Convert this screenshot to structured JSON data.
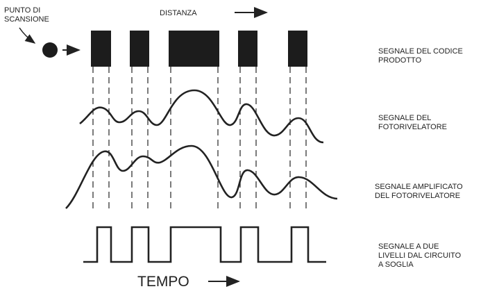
{
  "scan_point": [
    "PUNTO DI",
    "SCANSIONE"
  ],
  "distance": "DISTANZA",
  "signals": [
    {
      "lines": [
        "SEGNALE DEL CODICE",
        "PRODOTTO"
      ]
    },
    {
      "lines": [
        "SEGNALE DEL",
        "FOTORIVELATORE"
      ]
    },
    {
      "lines": [
        "SEGNALE AMPLIFICATO",
        "DEL FOTORIVELATORE"
      ]
    },
    {
      "lines": [
        "SEGNALE A DUE",
        "LIVELLI DAL CIRCUITO",
        "A SOGLIA"
      ]
    }
  ],
  "time": "TEMPO"
}
